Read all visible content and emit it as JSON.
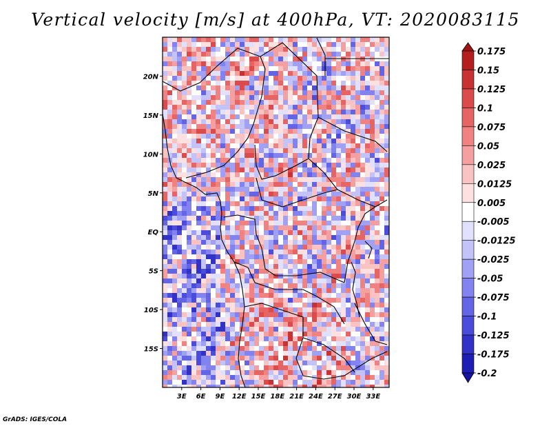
{
  "title": "Vertical velocity [m/s] at 400hPa, VT: 2020083115",
  "credit": "GrADS: IGES/COLA",
  "map": {
    "lon_range": [
      0,
      35.5
    ],
    "lat_range": [
      -20,
      25
    ],
    "lon_ticks": [
      "3E",
      "6E",
      "9E",
      "12E",
      "15E",
      "18E",
      "21E",
      "24E",
      "27E",
      "30E",
      "33E"
    ],
    "lon_tick_values": [
      3,
      6,
      9,
      12,
      15,
      18,
      21,
      24,
      27,
      30,
      33
    ],
    "lat_ticks": [
      "20N",
      "15N",
      "10N",
      "5N",
      "EQ",
      "5S",
      "10S",
      "15S"
    ],
    "lat_tick_values": [
      20,
      15,
      10,
      5,
      0,
      -5,
      -10,
      -15
    ]
  },
  "colorbar": {
    "labels": [
      "0.175",
      "0.15",
      "0.125",
      "0.1",
      "0.075",
      "0.05",
      "0.025",
      "0.0125",
      "0.005",
      "-0.005",
      "-0.0125",
      "-0.025",
      "-0.05",
      "-0.075",
      "-0.1",
      "-0.125",
      "-0.175",
      "-0.2"
    ],
    "colors": [
      "#a01414",
      "#b41e1e",
      "#c83232",
      "#dc4b4b",
      "#e66464",
      "#f08282",
      "#f5a0a0",
      "#fac3c3",
      "#fde1e1",
      "#ffffff",
      "#e1e1fd",
      "#c3c3fa",
      "#a0a0f5",
      "#8282f0",
      "#6464e6",
      "#4b4bdc",
      "#3232c8",
      "#1e1eb4",
      "#1414a0"
    ]
  }
}
